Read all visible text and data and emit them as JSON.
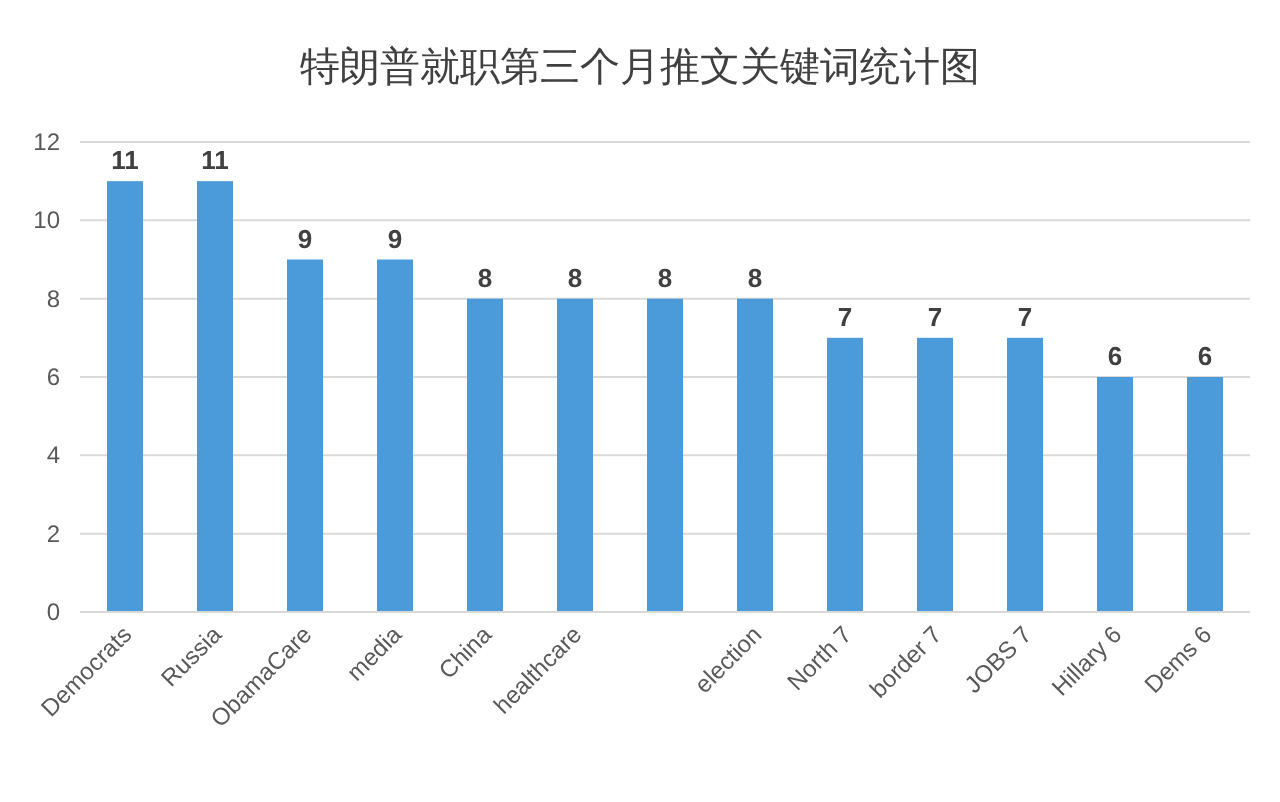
{
  "chart_data": {
    "type": "bar",
    "title": "特朗普就职第三个月推文关键词统计图",
    "categories": [
      "Democrats",
      "Russia",
      "ObamaCare",
      "media",
      "China",
      "healthcare",
      null,
      "election",
      "North 7",
      "border 7",
      "JOBS 7",
      "Hillary 6",
      "Dems 6"
    ],
    "values": [
      11,
      11,
      9,
      9,
      8,
      8,
      8,
      8,
      7,
      7,
      7,
      6,
      6
    ],
    "color": "#4b9bdb",
    "ylim": [
      0,
      12
    ],
    "yticks": [
      0,
      2,
      4,
      6,
      8,
      10,
      12
    ],
    "grid": "y",
    "data_labels": true
  }
}
